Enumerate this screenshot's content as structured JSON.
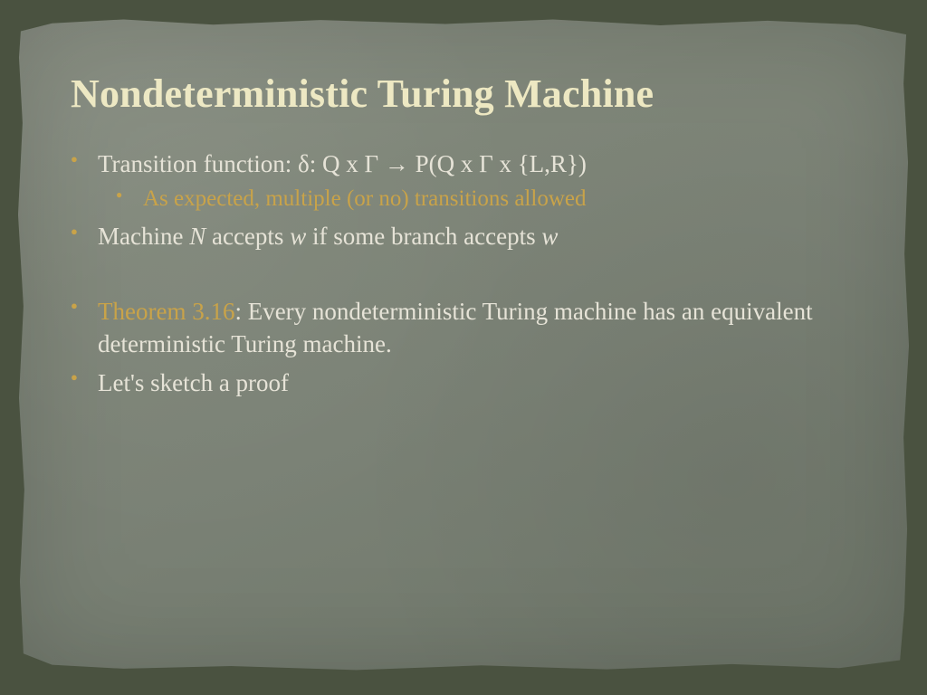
{
  "colors": {
    "frame_bg": "#4a5240",
    "paper_bg_start": "#8a9084",
    "paper_bg_end": "#70786b",
    "title": "#ede8c2",
    "body_text": "#e6e3d7",
    "bullet": "#c9a349",
    "sub_text": "#c9a349",
    "theorem_label": "#c9a349"
  },
  "typography": {
    "title_fontsize": 44,
    "body_fontsize": 27,
    "sub_fontsize": 25,
    "font_family": "Georgia serif"
  },
  "title": "Nondeterministic Turing Machine",
  "bullets": [
    {
      "text": "Transition function: δ: Q x Γ → P(Q x Γ x {L,R})",
      "sub": [
        {
          "text": "As expected, multiple (or no) transitions allowed"
        }
      ]
    },
    {
      "text_prefix": "Machine ",
      "italic1": "N",
      "text_mid": " accepts ",
      "italic2": "w",
      "text_mid2": " if some branch accepts ",
      "italic3": "w"
    },
    {
      "label": "Theorem 3.16",
      "text": ": Every nondeterministic Turing machine has an equivalent deterministic Turing machine."
    },
    {
      "text": "Let's sketch a proof"
    }
  ]
}
